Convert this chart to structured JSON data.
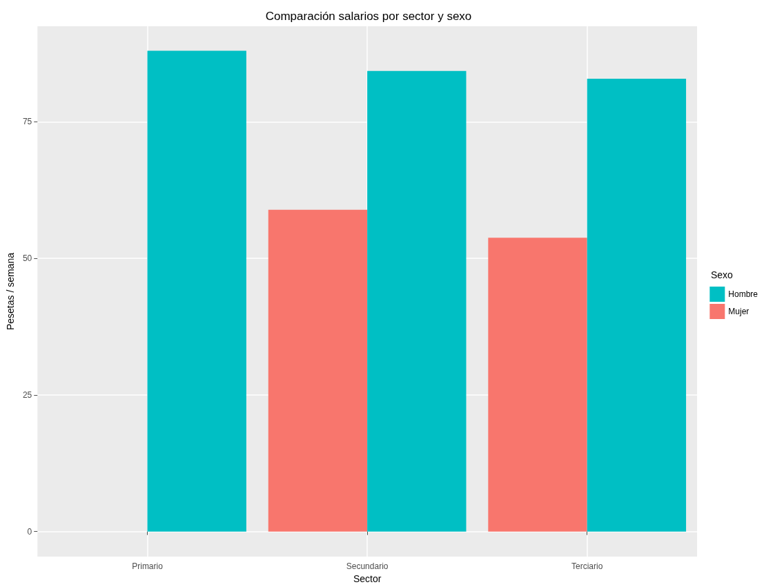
{
  "chart_data": {
    "type": "bar",
    "title": "Comparación salarios por sector y sexo",
    "xlabel": "Sector",
    "ylabel": "Pesetas / semana",
    "legend_title": "Sexo",
    "categories": [
      "Primario",
      "Secundario",
      "Terciario"
    ],
    "series": [
      {
        "name": "Mujer",
        "color": "#f8766d",
        "values": [
          null,
          58.9,
          53.8
        ]
      },
      {
        "name": "Hombre",
        "color": "#00bfc4",
        "values": [
          88.0,
          84.3,
          82.9
        ]
      }
    ],
    "ylim": [
      -4.6,
      92.5
    ],
    "yticks": [
      0,
      25,
      50,
      75
    ],
    "grid": true,
    "legend": "right"
  }
}
